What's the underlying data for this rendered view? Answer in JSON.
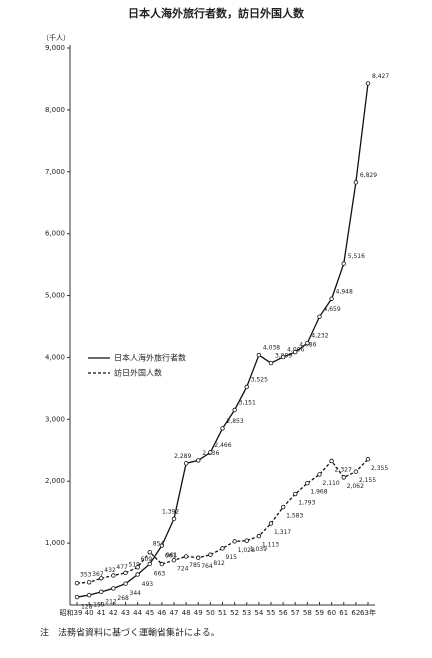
{
  "chart_data": {
    "type": "line",
    "title": "日本人海外旅行者数，訪日外国人数",
    "y_unit": "（千人）",
    "categories": [
      "昭和39",
      "40",
      "41",
      "42",
      "43",
      "44",
      "45",
      "46",
      "47",
      "48",
      "49",
      "50",
      "51",
      "52",
      "53",
      "54",
      "55",
      "56",
      "57",
      "58",
      "59",
      "60",
      "61",
      "62",
      "63年"
    ],
    "series": [
      {
        "name": "日本人海外旅行者数",
        "color": "#111111",
        "line_style": "solid",
        "values": [
          128,
          159,
          212,
          268,
          344,
          493,
          663,
          961,
          1392,
          2289,
          2336,
          2466,
          2853,
          3151,
          3525,
          4038,
          3909,
          4006,
          4086,
          4232,
          4659,
          4948,
          5516,
          6829,
          8427
        ],
        "value_labels": [
          "128",
          "159",
          "212",
          "268",
          "344",
          "493",
          "663",
          "961",
          "1,392",
          "2,289",
          "2,336",
          "2,466",
          "2,853",
          "3,151",
          "3,525",
          "4,038",
          "3,909",
          "4,006",
          "4,086",
          "4,232",
          "4,659",
          "4,948",
          "5,516",
          "6,829",
          "8,427"
        ]
      },
      {
        "name": "訪日外国人数",
        "color": "#111111",
        "line_style": "dashed",
        "values": [
          353,
          367,
          432,
          477,
          519,
          609,
          854,
          661,
          724,
          785,
          764,
          812,
          915,
          1028,
          1039,
          1113,
          1317,
          1583,
          1793,
          1968,
          2110,
          2327,
          2062,
          2155,
          2355
        ],
        "value_labels": [
          "353",
          "367",
          "432",
          "477",
          "519",
          "609",
          "854",
          "661",
          "724",
          "785",
          "764",
          "812",
          "915",
          "1,028",
          "1,039",
          "1,113",
          "1,317",
          "1,583",
          "1,793",
          "1,968",
          "2,110",
          "2,327",
          "2,062",
          "2,155",
          "2,355"
        ]
      }
    ],
    "ylim": [
      0,
      9000
    ],
    "yticks": [
      {
        "value": 1000,
        "label": "1,000"
      },
      {
        "value": 2000,
        "label": "2,000"
      },
      {
        "value": 3000,
        "label": "3,000"
      },
      {
        "value": 4000,
        "label": "4,000"
      },
      {
        "value": 5000,
        "label": "5,000"
      },
      {
        "value": 6000,
        "label": "6,000"
      },
      {
        "value": 7000,
        "label": "7,000"
      },
      {
        "value": 8000,
        "label": "8,000"
      },
      {
        "value": 9000,
        "label": "9,000"
      }
    ],
    "grid": false,
    "note": "注　法務省資料に基づく運輸省集計による。"
  }
}
